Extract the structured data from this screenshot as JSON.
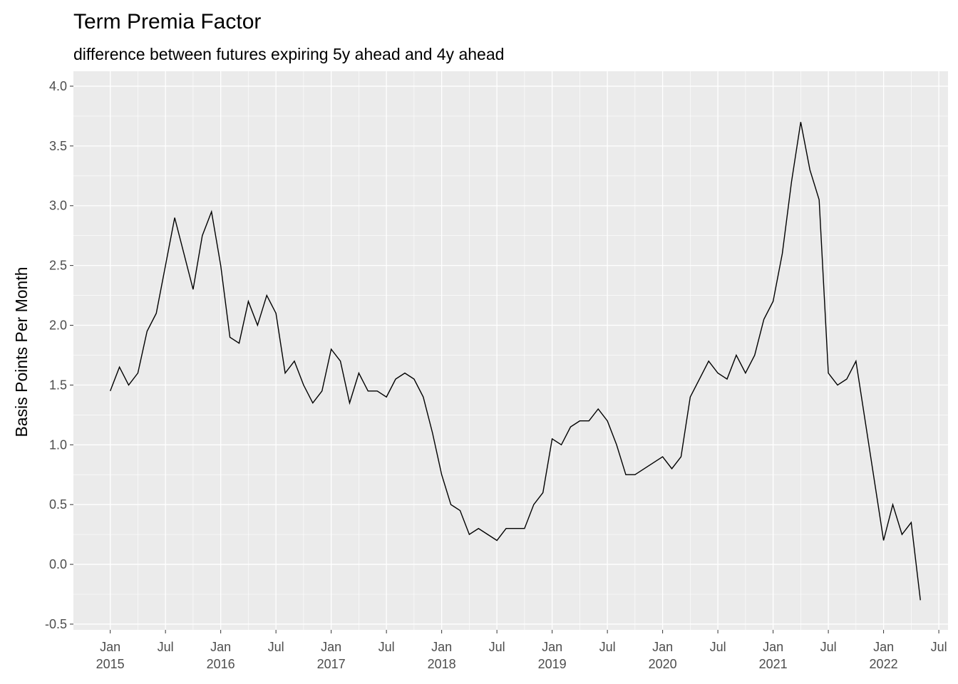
{
  "chart_data": {
    "type": "line",
    "title": "Term Premia Factor",
    "subtitle": "difference between futures expiring 5y ahead and 4y ahead",
    "y_label": "Basis Points Per Month",
    "grid": true,
    "x": [
      "2015-01",
      "2015-02",
      "2015-03",
      "2015-04",
      "2015-05",
      "2015-06",
      "2015-07",
      "2015-08",
      "2015-09",
      "2015-10",
      "2015-11",
      "2015-12",
      "2016-01",
      "2016-02",
      "2016-03",
      "2016-04",
      "2016-05",
      "2016-06",
      "2016-07",
      "2016-08",
      "2016-09",
      "2016-10",
      "2016-11",
      "2016-12",
      "2017-01",
      "2017-02",
      "2017-03",
      "2017-04",
      "2017-05",
      "2017-06",
      "2017-07",
      "2017-08",
      "2017-09",
      "2017-10",
      "2017-11",
      "2017-12",
      "2018-01",
      "2018-02",
      "2018-03",
      "2018-04",
      "2018-05",
      "2018-06",
      "2018-07",
      "2018-08",
      "2018-09",
      "2018-10",
      "2018-11",
      "2018-12",
      "2019-01",
      "2019-02",
      "2019-03",
      "2019-04",
      "2019-05",
      "2019-06",
      "2019-07",
      "2019-08",
      "2019-09",
      "2019-10",
      "2019-11",
      "2019-12",
      "2020-01",
      "2020-02",
      "2020-03",
      "2020-04",
      "2020-05",
      "2020-06",
      "2020-07",
      "2020-08",
      "2020-09",
      "2020-10",
      "2020-11",
      "2020-12",
      "2021-01",
      "2021-02",
      "2021-03",
      "2021-04",
      "2021-05",
      "2021-06",
      "2021-07",
      "2021-08",
      "2021-09",
      "2021-10",
      "2021-11",
      "2021-12",
      "2022-01",
      "2022-02",
      "2022-03",
      "2022-04",
      "2022-05"
    ],
    "series": [
      {
        "color": "#000000",
        "values": [
          1.45,
          1.65,
          1.5,
          1.6,
          1.95,
          2.1,
          2.5,
          2.9,
          2.6,
          2.3,
          2.75,
          2.95,
          2.5,
          1.9,
          1.85,
          2.2,
          2.0,
          2.25,
          2.1,
          1.6,
          1.7,
          1.5,
          1.35,
          1.45,
          1.8,
          1.7,
          1.35,
          1.6,
          1.45,
          1.45,
          1.4,
          1.55,
          1.6,
          1.55,
          1.4,
          1.1,
          0.75,
          0.5,
          0.45,
          0.25,
          0.3,
          0.25,
          0.2,
          0.3,
          0.3,
          0.3,
          0.5,
          0.6,
          1.05,
          1.0,
          1.15,
          1.2,
          1.2,
          1.3,
          1.2,
          1.0,
          0.75,
          0.75,
          0.8,
          0.85,
          0.9,
          0.8,
          0.9,
          1.4,
          1.55,
          1.7,
          1.6,
          1.55,
          1.75,
          1.6,
          1.75,
          2.05,
          2.2,
          2.6,
          3.2,
          3.7,
          3.3,
          3.05,
          1.6,
          1.5,
          1.55,
          1.7,
          1.2,
          0.7,
          0.2,
          0.5,
          0.25,
          0.35,
          -0.3
        ]
      }
    ],
    "xlim": [
      "2014-09",
      "2022-08"
    ],
    "xticks": [
      {
        "value": "2015-01",
        "label": "Jan\n2015"
      },
      {
        "value": "2015-07",
        "label": "Jul"
      },
      {
        "value": "2016-01",
        "label": "Jan\n2016"
      },
      {
        "value": "2016-07",
        "label": "Jul"
      },
      {
        "value": "2017-01",
        "label": "Jan\n2017"
      },
      {
        "value": "2017-07",
        "label": "Jul"
      },
      {
        "value": "2018-01",
        "label": "Jan\n2018"
      },
      {
        "value": "2018-07",
        "label": "Jul"
      },
      {
        "value": "2019-01",
        "label": "Jan\n2019"
      },
      {
        "value": "2019-07",
        "label": "Jul"
      },
      {
        "value": "2020-01",
        "label": "Jan\n2020"
      },
      {
        "value": "2020-07",
        "label": "Jul"
      },
      {
        "value": "2021-01",
        "label": "Jan\n2021"
      },
      {
        "value": "2021-07",
        "label": "Jul"
      },
      {
        "value": "2022-01",
        "label": "Jan\n2022"
      },
      {
        "value": "2022-07",
        "label": "Jul"
      }
    ],
    "ylim": [
      -0.548,
      4.125
    ],
    "yticks": [
      -0.5,
      {
        "value": 0,
        "label": "0.0"
      },
      0.5,
      {
        "value": 1,
        "label": "1.0"
      },
      1.5,
      {
        "value": 2,
        "label": "2.0"
      },
      2.5,
      {
        "value": 3,
        "label": "3.0"
      },
      3.5,
      {
        "value": 4,
        "label": "4.0"
      }
    ]
  }
}
